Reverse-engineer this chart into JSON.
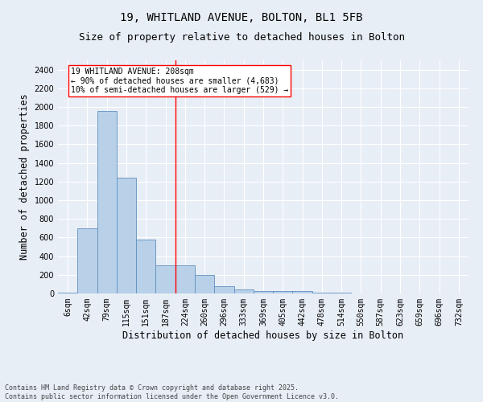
{
  "title_line1": "19, WHITLAND AVENUE, BOLTON, BL1 5FB",
  "title_line2": "Size of property relative to detached houses in Bolton",
  "xlabel": "Distribution of detached houses by size in Bolton",
  "ylabel": "Number of detached properties",
  "bar_color": "#b8d0e8",
  "bar_edge_color": "#6090c0",
  "background_color": "#e8eef6",
  "grid_color": "#ffffff",
  "categories": [
    "6sqm",
    "42sqm",
    "79sqm",
    "115sqm",
    "151sqm",
    "187sqm",
    "224sqm",
    "260sqm",
    "296sqm",
    "333sqm",
    "369sqm",
    "405sqm",
    "442sqm",
    "478sqm",
    "514sqm",
    "550sqm",
    "587sqm",
    "623sqm",
    "659sqm",
    "696sqm",
    "732sqm"
  ],
  "values": [
    10,
    700,
    1960,
    1240,
    580,
    305,
    300,
    195,
    75,
    40,
    30,
    30,
    30,
    5,
    5,
    0,
    0,
    0,
    0,
    0,
    0
  ],
  "ylim": [
    0,
    2500
  ],
  "yticks": [
    0,
    200,
    400,
    600,
    800,
    1000,
    1200,
    1400,
    1600,
    1800,
    2000,
    2200,
    2400
  ],
  "property_line_x": 5.5,
  "annotation_text_line1": "19 WHITLAND AVENUE: 208sqm",
  "annotation_text_line2": "← 90% of detached houses are smaller (4,683)",
  "annotation_text_line3": "10% of semi-detached houses are larger (529) →",
  "footer_text": "Contains HM Land Registry data © Crown copyright and database right 2025.\nContains public sector information licensed under the Open Government Licence v3.0.",
  "title_fontsize": 10,
  "subtitle_fontsize": 9,
  "tick_fontsize": 7,
  "label_fontsize": 8.5,
  "footer_fontsize": 6
}
